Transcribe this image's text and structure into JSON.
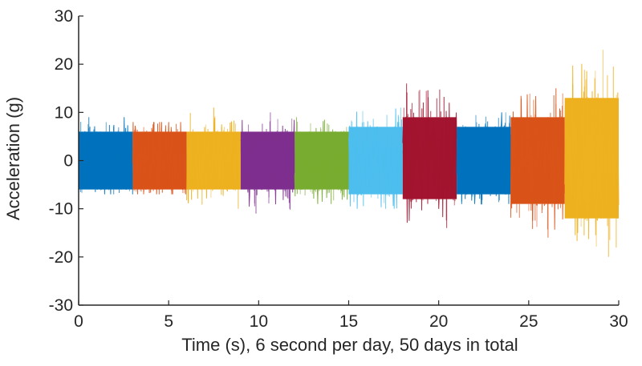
{
  "chart_data": {
    "type": "line",
    "title": "",
    "xlabel": "Time (s), 6 second per day, 50 days in total",
    "ylabel": "Acceleration (g)",
    "xlim": [
      0,
      30
    ],
    "ylim": [
      -30,
      30
    ],
    "x_ticks": [
      "0",
      "5",
      "10",
      "15",
      "20",
      "25",
      "30"
    ],
    "y_ticks": [
      "30",
      "20",
      "10",
      "0",
      "-10",
      "-20",
      "-30"
    ],
    "x_tick_values": [
      0,
      5,
      10,
      15,
      20,
      25,
      30
    ],
    "y_tick_values": [
      30,
      20,
      10,
      0,
      -10,
      -20,
      -30
    ],
    "grid": false,
    "segments": [
      {
        "x_start": 0,
        "x_end": 3,
        "color": "#0072BD",
        "peak_pos": 9,
        "peak_neg": -7,
        "typical_band": [
          -6,
          6
        ]
      },
      {
        "x_start": 3,
        "x_end": 6,
        "color": "#D95319",
        "peak_pos": 8,
        "peak_neg": -7,
        "typical_band": [
          -6,
          6
        ]
      },
      {
        "x_start": 6,
        "x_end": 9,
        "color": "#EDB120",
        "peak_pos": 11,
        "peak_neg": -10,
        "typical_band": [
          -6,
          6
        ]
      },
      {
        "x_start": 9,
        "x_end": 12,
        "color": "#7E2F8E",
        "peak_pos": 10,
        "peak_neg": -11,
        "typical_band": [
          -6,
          6
        ]
      },
      {
        "x_start": 12,
        "x_end": 15,
        "color": "#77AC30",
        "peak_pos": 9,
        "peak_neg": -9,
        "typical_band": [
          -6,
          6
        ]
      },
      {
        "x_start": 15,
        "x_end": 18,
        "color": "#4DBEEE",
        "peak_pos": 11,
        "peak_neg": -10,
        "typical_band": [
          -7,
          7
        ]
      },
      {
        "x_start": 18,
        "x_end": 21,
        "color": "#A2142F",
        "peak_pos": 16,
        "peak_neg": -14,
        "typical_band": [
          -8,
          9
        ]
      },
      {
        "x_start": 21,
        "x_end": 24,
        "color": "#0072BD",
        "peak_pos": 10,
        "peak_neg": -9,
        "typical_band": [
          -7,
          7
        ]
      },
      {
        "x_start": 24,
        "x_end": 27,
        "color": "#D95319",
        "peak_pos": 15,
        "peak_neg": -16,
        "typical_band": [
          -9,
          9
        ]
      },
      {
        "x_start": 27,
        "x_end": 30,
        "color": "#EDB120",
        "peak_pos": 23,
        "peak_neg": -20,
        "typical_band": [
          -12,
          13
        ]
      }
    ]
  }
}
